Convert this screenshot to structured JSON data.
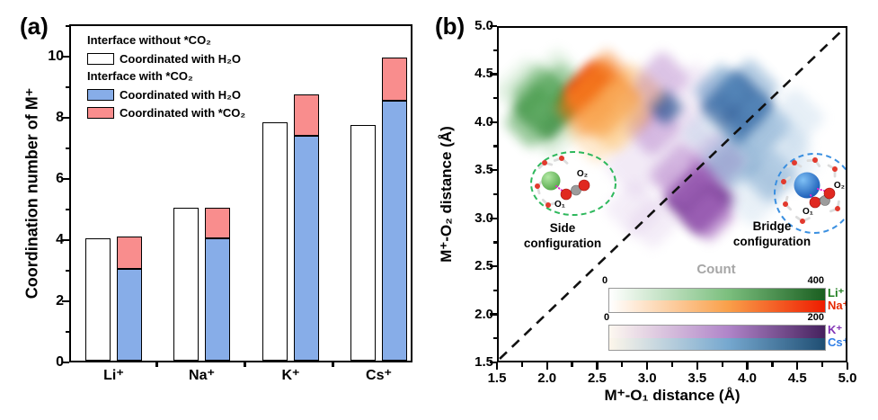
{
  "chart_data": [
    {
      "panel": "(a)",
      "type": "bar",
      "ylabel": "Coordination number of M⁺",
      "ylim": [
        0,
        11
      ],
      "yticks_major": [
        0,
        2,
        4,
        6,
        8,
        10
      ],
      "ytick_labels": [
        "0",
        "2",
        "4",
        "6",
        "8",
        "10"
      ],
      "yticks_minor": [
        1,
        3,
        5,
        7,
        9,
        11
      ],
      "categories": [
        "Li⁺",
        "Na⁺",
        "K⁺",
        "Cs⁺"
      ],
      "series": [
        {
          "name": "Interface without *CO₂ — Coordinated with H₂O",
          "fill": "#ffffff",
          "values": [
            4.0,
            5.0,
            7.8,
            7.7
          ]
        },
        {
          "name": "Interface with *CO₂ — Coordinated with H₂O",
          "fill": "#87ade8",
          "values": [
            3.0,
            4.0,
            7.35,
            8.5
          ]
        },
        {
          "name": "Interface with *CO₂ — Coordinated with *CO₂ (stacked above H₂O)",
          "fill": "#f98d8d",
          "values": [
            1.05,
            1.0,
            1.35,
            1.4
          ]
        }
      ],
      "stacked_totals": [
        4.05,
        5.0,
        8.7,
        9.9
      ],
      "legend": {
        "group1_header": "Interface without *CO₂",
        "group1_item": "Coordinated with H₂O",
        "group2_header": "Interface with *CO₂",
        "group2_item1": "Coordinated with H₂O",
        "group2_item2": "Coordinated with *CO₂"
      }
    },
    {
      "panel": "(b)",
      "type": "heatmap",
      "xlabel": "M⁺-O₁ distance (Å)",
      "ylabel": "M⁺-O₂ distance (Å)",
      "xlim": [
        1.5,
        5.0
      ],
      "ylim": [
        1.5,
        5.0
      ],
      "tick_values": [
        1.5,
        2.0,
        2.5,
        3.0,
        3.5,
        4.0,
        4.5,
        5.0
      ],
      "tick_labels": [
        "1.5",
        "2.0",
        "2.5",
        "3.0",
        "3.5",
        "4.0",
        "4.5",
        "5.0"
      ],
      "diagonal": "dashed y = x reference line",
      "clusters": [
        {
          "name": "Li⁺",
          "palette": [
            "#0e6b16",
            "#3f9a43",
            "#a3d3a5"
          ],
          "blobs": [
            [
              2.0,
              4.15,
              0.5,
              0.95,
              0
            ],
            [
              1.92,
              4.3,
              0.42,
              0.55,
              1
            ],
            [
              2.13,
              4.32,
              0.45,
              0.5,
              1
            ],
            [
              1.83,
              4.0,
              0.4,
              0.5,
              1
            ],
            [
              2.05,
              3.93,
              0.45,
              0.35,
              2
            ],
            [
              1.8,
              4.33,
              0.5,
              0.3,
              2
            ],
            [
              2.1,
              4.5,
              0.4,
              0.25,
              2
            ]
          ]
        },
        {
          "name": "Na⁺",
          "palette": [
            "#e02800",
            "#f57c1f",
            "#fbc070"
          ],
          "blobs": [
            [
              2.47,
              4.32,
              0.45,
              0.95,
              0
            ],
            [
              2.55,
              4.25,
              0.6,
              0.75,
              1
            ],
            [
              2.38,
              4.15,
              0.45,
              0.6,
              1
            ],
            [
              2.6,
              4.47,
              0.42,
              0.45,
              1
            ],
            [
              2.68,
              4.05,
              0.55,
              0.45,
              2
            ],
            [
              2.85,
              4.28,
              0.5,
              0.4,
              2
            ],
            [
              2.5,
              3.92,
              0.5,
              0.35,
              2
            ]
          ]
        },
        {
          "name": "K⁺",
          "palette": [
            "#6e2a8e",
            "#a86bc0",
            "#d9c2e6"
          ],
          "blobs": [
            [
              3.52,
              3.2,
              0.55,
              0.85,
              0
            ],
            [
              3.62,
              3.02,
              0.4,
              0.6,
              1
            ],
            [
              3.35,
              3.45,
              0.5,
              0.55,
              1
            ],
            [
              3.05,
              3.95,
              0.45,
              0.5,
              1
            ],
            [
              2.95,
              4.2,
              0.4,
              0.45,
              1
            ],
            [
              3.15,
              4.45,
              0.42,
              0.4,
              1
            ],
            [
              3.32,
              3.85,
              0.5,
              0.4,
              2
            ],
            [
              2.9,
              3.55,
              0.5,
              0.33,
              2
            ],
            [
              2.87,
              3.1,
              0.45,
              0.28,
              2
            ],
            [
              3.48,
              4.28,
              0.5,
              0.3,
              2
            ],
            [
              3.7,
              3.6,
              0.45,
              0.4,
              1
            ],
            [
              3.05,
              2.95,
              0.4,
              0.3,
              2
            ]
          ]
        },
        {
          "name": "Cs⁺",
          "palette": [
            "#24508f",
            "#5b8fc0",
            "#b5cfe6"
          ],
          "blobs": [
            [
              3.9,
              4.15,
              0.55,
              0.9,
              0
            ],
            [
              3.18,
              4.15,
              0.26,
              0.7,
              0
            ],
            [
              3.75,
              4.32,
              0.42,
              0.55,
              1
            ],
            [
              4.1,
              3.95,
              0.5,
              0.6,
              1
            ],
            [
              4.02,
              4.35,
              0.45,
              0.45,
              1
            ],
            [
              4.22,
              3.45,
              0.42,
              0.5,
              1
            ],
            [
              3.85,
              3.6,
              0.45,
              0.45,
              1
            ],
            [
              4.32,
              3.78,
              0.5,
              0.4,
              2
            ],
            [
              4.48,
              4.05,
              0.45,
              0.33,
              2
            ],
            [
              3.62,
              3.88,
              0.42,
              0.38,
              2
            ],
            [
              4.05,
              3.18,
              0.4,
              0.3,
              2
            ],
            [
              4.45,
              3.55,
              0.4,
              0.28,
              2
            ]
          ]
        }
      ],
      "annotations": {
        "side_line1": "Side",
        "side_line2": "configuration",
        "bridge_line1": "Bridge",
        "bridge_line2": "configuration",
        "o1": "O₁",
        "o2": "O₂",
        "count_title": "Count",
        "count_title_color": "#a6a6a6",
        "side_ellipse_color": "#2eb85c",
        "bridge_circle_color": "#3a8fe0",
        "bond_dot_color": "#ea1fd0"
      },
      "colorbars": [
        {
          "min_label": "0",
          "max_label": "400",
          "rows": [
            {
              "name": "Li⁺",
              "label_color": "#1e7d1e",
              "gradient": [
                "#ffffff",
                "#7cbf7e",
                "#1a5e20"
              ]
            },
            {
              "name": "Na⁺",
              "label_color": "#e62800",
              "gradient": [
                "#ffffff",
                "#f9a04a",
                "#ee1c00"
              ]
            }
          ]
        },
        {
          "min_label": "0",
          "max_label": "200",
          "rows": [
            {
              "name": "K⁺",
              "label_color": "#8233b5",
              "gradient": [
                "#fdf8f0",
                "#b085c9",
                "#46215e"
              ]
            },
            {
              "name": "Cs⁺",
              "label_color": "#2e7de6",
              "gradient": [
                "#fdf6ea",
                "#76a8cf",
                "#1f4e73"
              ]
            }
          ]
        }
      ]
    }
  ]
}
